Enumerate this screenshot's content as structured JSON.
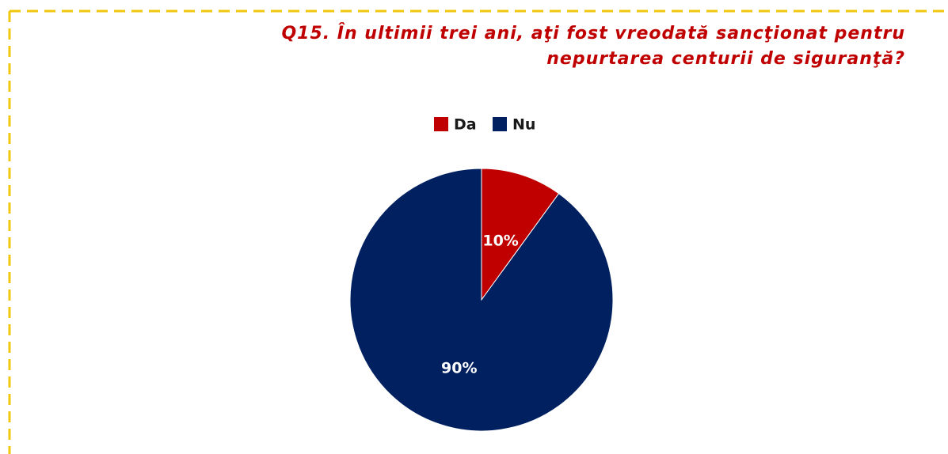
{
  "chart_data": {
    "type": "pie",
    "title": [
      "Q15. În ultimii trei ani, aţi fost vreodată sancţionat pentru",
      "nepurtarea centurii de siguranţă?"
    ],
    "categories": [
      "Da",
      "Nu"
    ],
    "values": [
      10,
      90
    ],
    "value_labels": [
      "10%",
      "90%"
    ],
    "colors": [
      "#c00000",
      "#002060"
    ],
    "legend": "top"
  }
}
